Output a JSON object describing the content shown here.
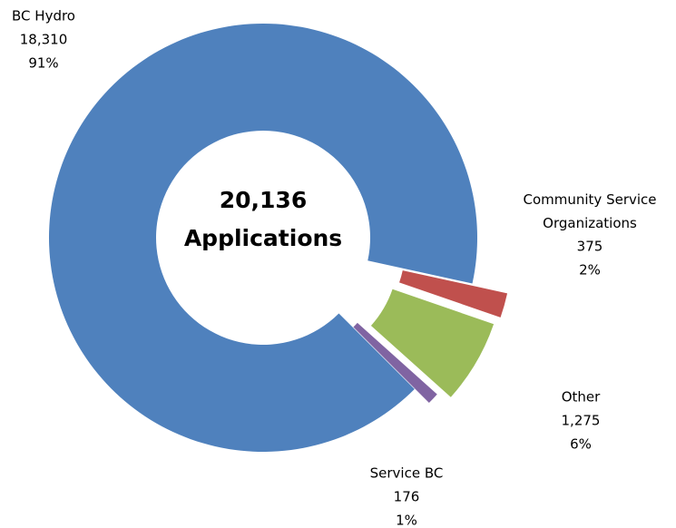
{
  "chart_data": {
    "type": "donut",
    "center_value": 20136,
    "center_value_label": "20,136",
    "center_text": "Applications",
    "categories": [
      "BC Hydro",
      "Community Service Organizations",
      "Other",
      "Service BC"
    ],
    "values": [
      18310,
      375,
      1275,
      176
    ],
    "value_labels": [
      "18,310",
      "375",
      "1,275",
      "176"
    ],
    "percentages": [
      91,
      2,
      6,
      1
    ],
    "percentage_labels": [
      "91%",
      "2%",
      "6%",
      "1%"
    ],
    "colors": [
      "#4f81bd",
      "#c0504d",
      "#9bbb59",
      "#8064a2"
    ]
  }
}
